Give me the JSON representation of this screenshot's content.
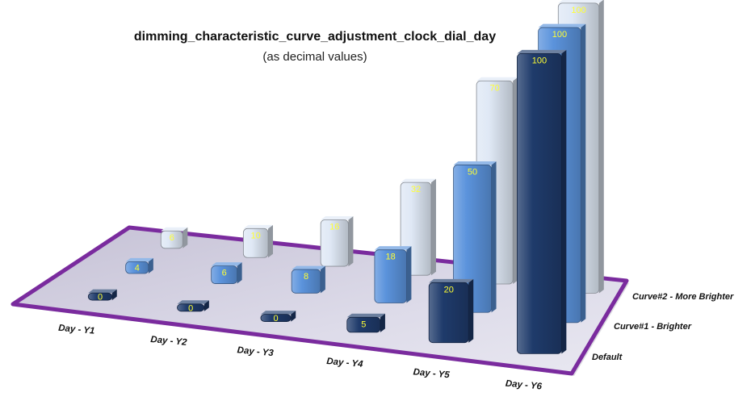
{
  "chart_data": {
    "type": "bar",
    "subtype": "3d-column",
    "title": "dimming_characteristic_curve_adjustment_clock_dial_day",
    "subtitle": "(as decimal values)",
    "categories": [
      "Day - Y1",
      "Day - Y2",
      "Day - Y3",
      "Day - Y4",
      "Day - Y5",
      "Day - Y6"
    ],
    "series": [
      {
        "name": "Default",
        "values": [
          0,
          0,
          0,
          5,
          20,
          100
        ],
        "color": "#1f3b6b"
      },
      {
        "name": "Curve#1 - Brighter",
        "values": [
          4,
          6,
          8,
          18,
          50,
          100
        ],
        "color": "#5b93dc"
      },
      {
        "name": "Curve#2 - More Brighter",
        "values": [
          6,
          10,
          16,
          32,
          70,
          100
        ],
        "color": "#dfe8f5"
      }
    ],
    "ylim": [
      0,
      100
    ],
    "value_label_color": "#ffff33",
    "floor_color": "#cfcbe0",
    "floor_border_color": "#7a2b9e",
    "grid": false
  }
}
